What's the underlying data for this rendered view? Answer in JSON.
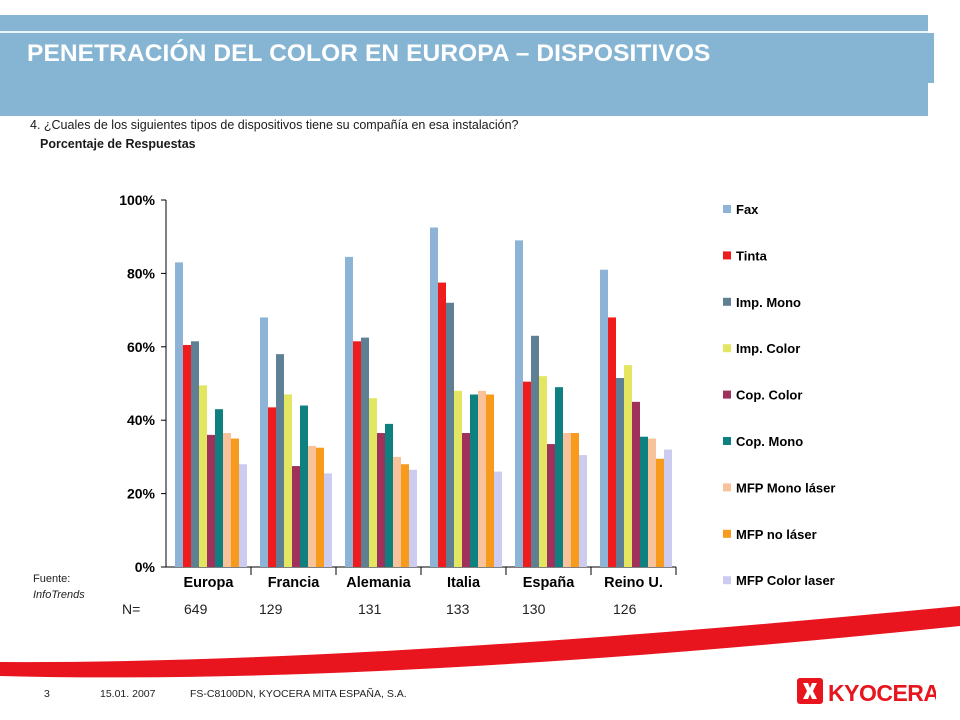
{
  "header": {
    "title": "PENETRACIÓN DEL COLOR EN EUROPA – DISPOSITIVOS"
  },
  "question": "4.  ¿Cuales de los siguientes tipos de dispositivos tiene su compañía en esa instalación?",
  "subtitle": "Porcentaje de Respuestas",
  "source": {
    "label": "Fuente:",
    "name": "InfoTrends"
  },
  "sample_sizes": {
    "label": "N=",
    "values": [
      "649",
      "129",
      "131",
      "133",
      "130",
      "126"
    ]
  },
  "footer": {
    "page": "3",
    "date": "15.01. 2007",
    "company": "FS-C8100DN, KYOCERA MITA ESPAÑA, S.A.",
    "logo_text": "KYOCERA"
  },
  "colors": {
    "header": "#86b5d4",
    "brand_red": "#e8141e"
  },
  "chart_data": {
    "type": "bar",
    "categories": [
      "Europa",
      "Francia",
      "Alemania",
      "Italia",
      "España",
      "Reino U."
    ],
    "ylim": [
      0,
      100
    ],
    "yticks": [
      "0%",
      "20%",
      "40%",
      "60%",
      "80%",
      "100%"
    ],
    "grid": false,
    "legend_position": "right",
    "series": [
      {
        "name": "Fax",
        "color": "#8db3d6",
        "values": [
          83,
          68,
          84.5,
          92.5,
          89,
          81
        ]
      },
      {
        "name": "Tinta",
        "color": "#ee1c1c",
        "values": [
          60.5,
          43.5,
          61.5,
          77.5,
          50.5,
          68
        ]
      },
      {
        "name": "Imp. Mono",
        "color": "#5f7f94",
        "values": [
          61.5,
          58,
          62.5,
          72,
          63,
          51.5
        ]
      },
      {
        "name": "Imp. Color",
        "color": "#e3e660",
        "values": [
          49.5,
          47,
          46,
          48,
          52,
          55
        ]
      },
      {
        "name": "Cop. Color",
        "color": "#a0305c",
        "values": [
          36,
          27.5,
          36.5,
          36.5,
          33.5,
          45
        ]
      },
      {
        "name": "Cop. Mono",
        "color": "#0f8080",
        "values": [
          43,
          44,
          39,
          47,
          49,
          35.5
        ]
      },
      {
        "name": "MFP Mono láser",
        "color": "#f8c29a",
        "values": [
          36.5,
          33,
          30,
          48,
          36.5,
          35
        ]
      },
      {
        "name": "MFP no láser",
        "color": "#f89a1c",
        "values": [
          35,
          32.5,
          28,
          47,
          36.5,
          29.5
        ]
      },
      {
        "name": "MFP Color laser",
        "color": "#ccccf0",
        "values": [
          28,
          25.5,
          26.5,
          26,
          30.5,
          32
        ]
      }
    ]
  }
}
